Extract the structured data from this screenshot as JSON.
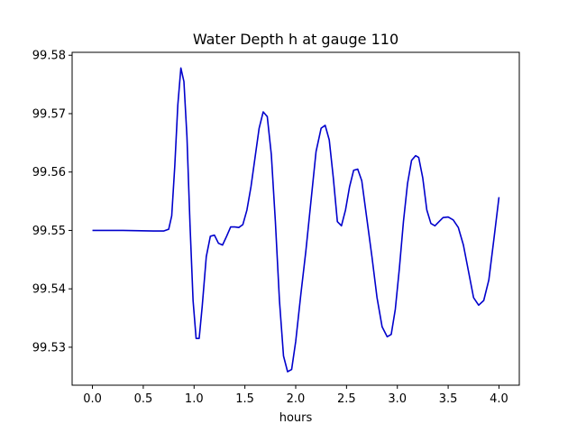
{
  "chart_data": {
    "type": "line",
    "title": "Water Depth h at gauge 110",
    "xlabel": "hours",
    "ylabel": "",
    "xlim": [
      -0.2,
      4.2
    ],
    "ylim": [
      99.5235,
      99.5805
    ],
    "grid": false,
    "xticks": [
      {
        "value": 0.0,
        "label": "0.0"
      },
      {
        "value": 0.5,
        "label": "0.5"
      },
      {
        "value": 1.0,
        "label": "1.0"
      },
      {
        "value": 1.5,
        "label": "1.5"
      },
      {
        "value": 2.0,
        "label": "2.0"
      },
      {
        "value": 2.5,
        "label": "2.5"
      },
      {
        "value": 3.0,
        "label": "3.0"
      },
      {
        "value": 3.5,
        "label": "3.5"
      },
      {
        "value": 4.0,
        "label": "4.0"
      }
    ],
    "yticks": [
      {
        "value": 99.53,
        "label": "99.53"
      },
      {
        "value": 99.54,
        "label": "99.54"
      },
      {
        "value": 99.55,
        "label": "99.55"
      },
      {
        "value": 99.56,
        "label": "99.56"
      },
      {
        "value": 99.57,
        "label": "99.57"
      },
      {
        "value": 99.58,
        "label": "99.58"
      }
    ],
    "series": [
      {
        "color": "#0000cc",
        "x": [
          0.0,
          0.3,
          0.6,
          0.7,
          0.75,
          0.78,
          0.81,
          0.84,
          0.87,
          0.9,
          0.93,
          0.96,
          0.99,
          1.02,
          1.05,
          1.08,
          1.12,
          1.16,
          1.2,
          1.24,
          1.28,
          1.32,
          1.36,
          1.4,
          1.44,
          1.48,
          1.52,
          1.56,
          1.6,
          1.64,
          1.68,
          1.72,
          1.76,
          1.8,
          1.84,
          1.88,
          1.92,
          1.96,
          2.0,
          2.05,
          2.1,
          2.15,
          2.2,
          2.25,
          2.29,
          2.33,
          2.37,
          2.41,
          2.45,
          2.49,
          2.53,
          2.57,
          2.61,
          2.65,
          2.7,
          2.75,
          2.8,
          2.85,
          2.9,
          2.94,
          2.98,
          3.02,
          3.06,
          3.1,
          3.14,
          3.18,
          3.21,
          3.25,
          3.29,
          3.33,
          3.37,
          3.41,
          3.45,
          3.5,
          3.55,
          3.6,
          3.65,
          3.7,
          3.75,
          3.8,
          3.85,
          3.9,
          3.95,
          4.0
        ],
        "y": [
          99.55,
          99.55,
          99.5499,
          99.5499,
          99.5502,
          99.5525,
          99.561,
          99.5715,
          99.5778,
          99.5755,
          99.566,
          99.551,
          99.538,
          99.5315,
          99.5315,
          99.537,
          99.5455,
          99.549,
          99.5492,
          99.5478,
          99.5475,
          99.549,
          99.5506,
          99.5506,
          99.5505,
          99.551,
          99.5535,
          99.5575,
          99.5625,
          99.5675,
          99.5703,
          99.5695,
          99.563,
          99.5515,
          99.538,
          99.5285,
          99.5258,
          99.5262,
          99.531,
          99.539,
          99.5465,
          99.555,
          99.5635,
          99.5675,
          99.568,
          99.5655,
          99.559,
          99.5515,
          99.5508,
          99.5535,
          99.5575,
          99.5603,
          99.5605,
          99.5585,
          99.552,
          99.5455,
          99.5385,
          99.5335,
          99.5318,
          99.5322,
          99.5365,
          99.5435,
          99.5515,
          99.558,
          99.562,
          99.5628,
          99.5625,
          99.559,
          99.5535,
          99.5512,
          99.5508,
          99.5515,
          99.5522,
          99.5523,
          99.5518,
          99.5505,
          99.5475,
          99.543,
          99.5385,
          99.5372,
          99.538,
          99.5415,
          99.5485,
          99.5557
        ]
      }
    ]
  }
}
